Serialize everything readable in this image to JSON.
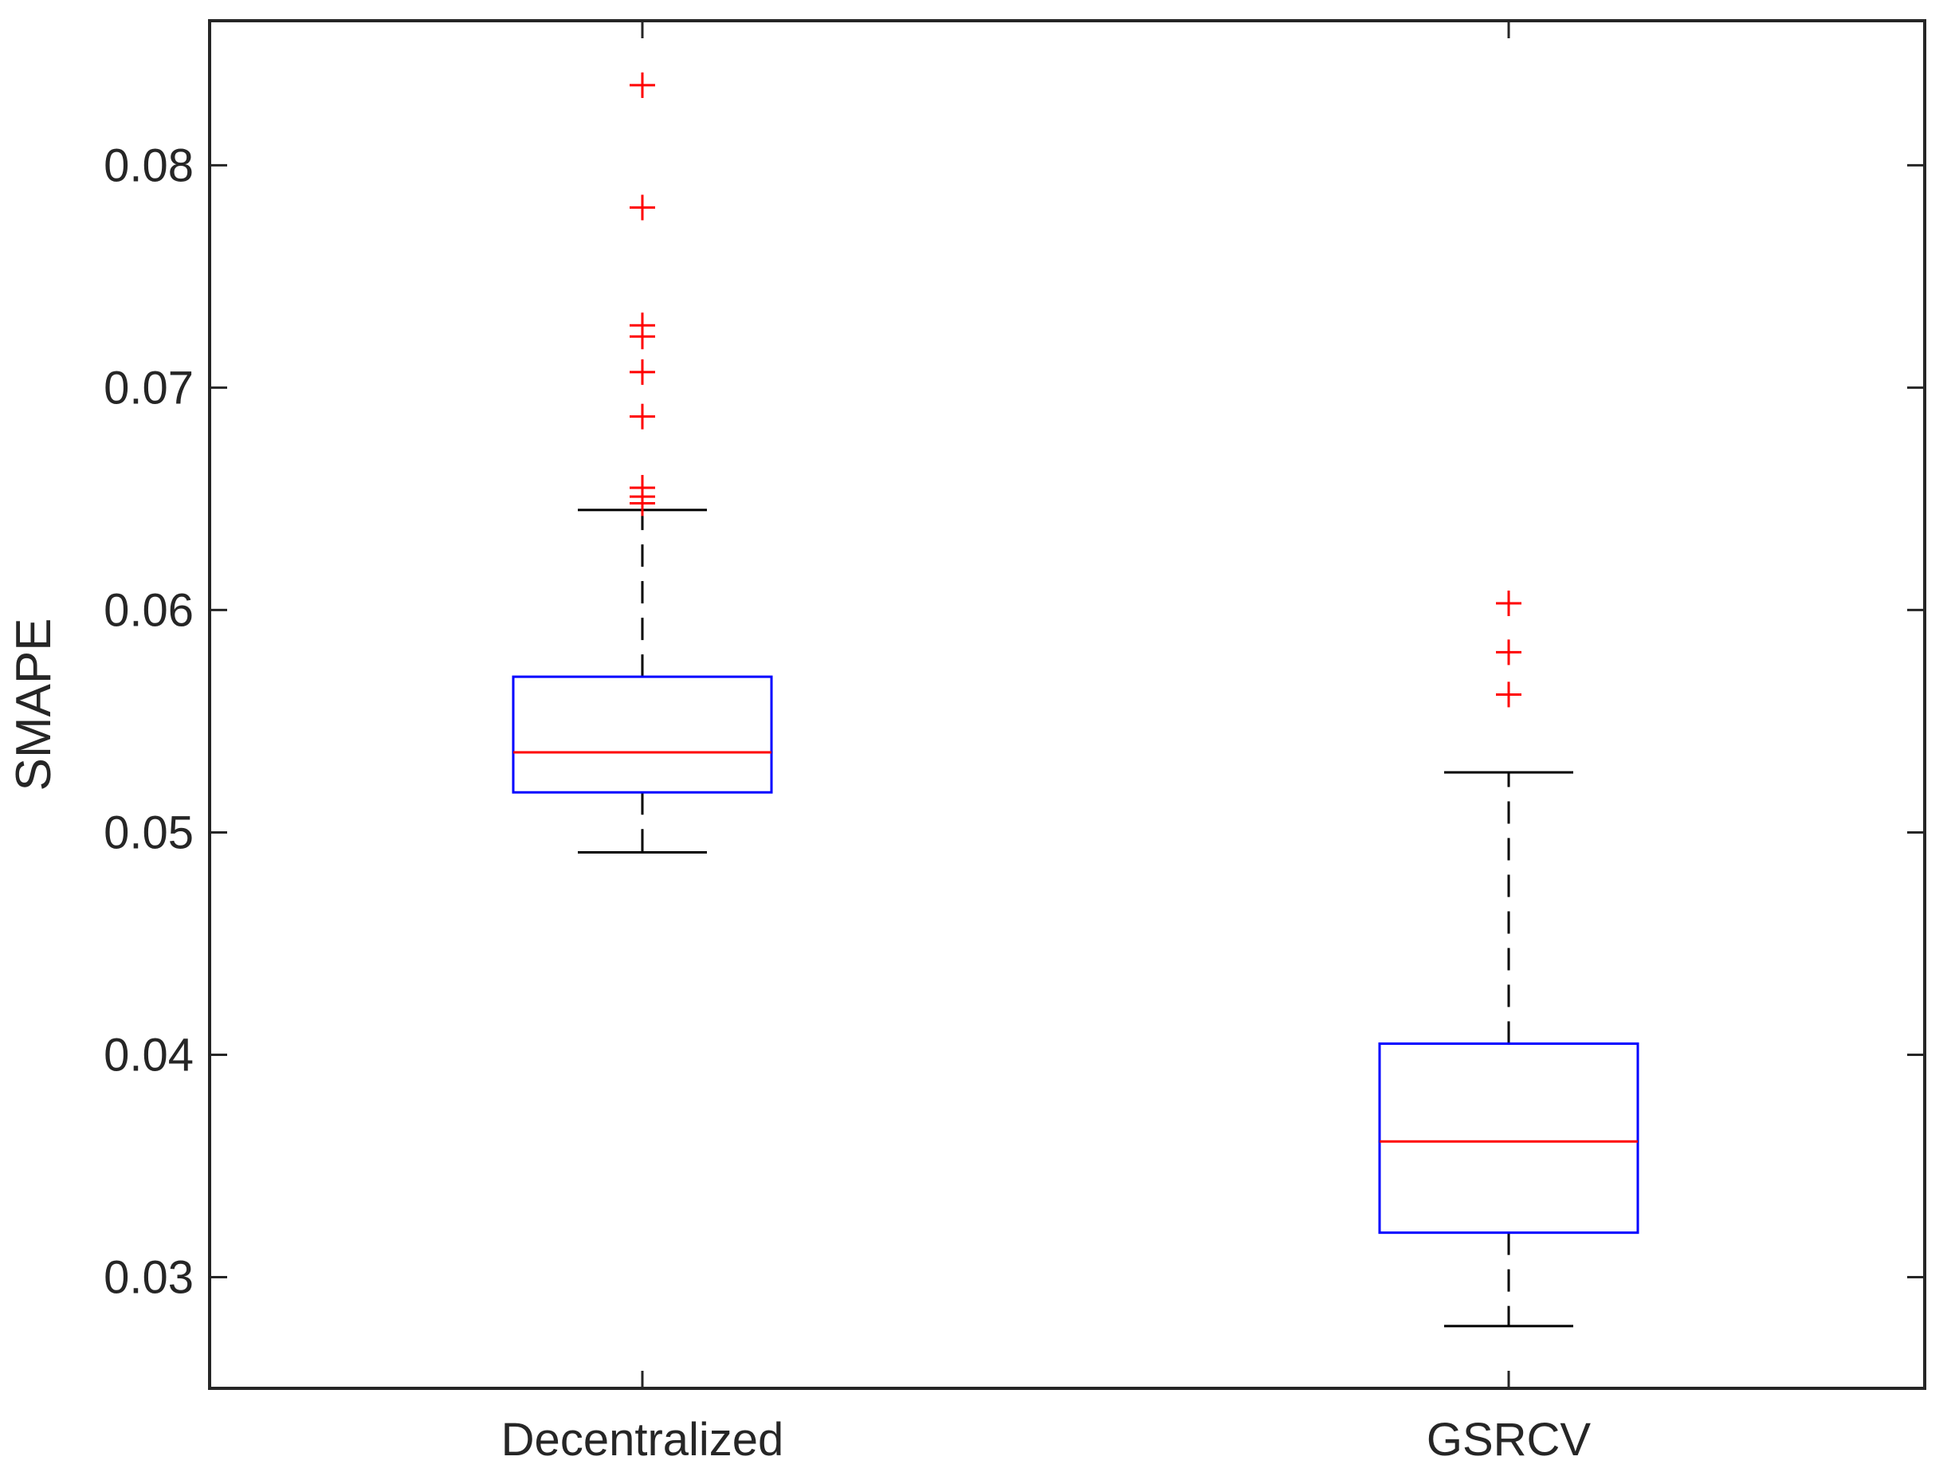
{
  "chart_data": {
    "type": "boxplot",
    "title": "",
    "xlabel": "",
    "ylabel": "SMAPE",
    "ylim": [
      0.025,
      0.0865
    ],
    "yticks": [
      0.03,
      0.04,
      0.05,
      0.06,
      0.07,
      0.08
    ],
    "ytick_labels": [
      "0.03",
      "0.04",
      "0.05",
      "0.06",
      "0.07",
      "0.08"
    ],
    "categories": [
      "Decentralized",
      "GSRCV"
    ],
    "boxes": [
      {
        "name": "Decentralized",
        "whisker_low": 0.0491,
        "q1": 0.0518,
        "median": 0.0536,
        "q3": 0.057,
        "whisker_high": 0.0645,
        "outliers": [
          0.0836,
          0.0781,
          0.0728,
          0.0723,
          0.0707,
          0.0687,
          0.0655,
          0.0651,
          0.0648
        ]
      },
      {
        "name": "GSRCV",
        "whisker_low": 0.0278,
        "q1": 0.032,
        "median": 0.0361,
        "q3": 0.0405,
        "whisker_high": 0.0527,
        "outliers": [
          0.0603,
          0.0581,
          0.0562
        ]
      }
    ],
    "colors": {
      "box": "#0000ff",
      "median": "#ff0000",
      "outlier": "#ff0000",
      "whisker": "#000000",
      "axis": "#262626"
    }
  }
}
